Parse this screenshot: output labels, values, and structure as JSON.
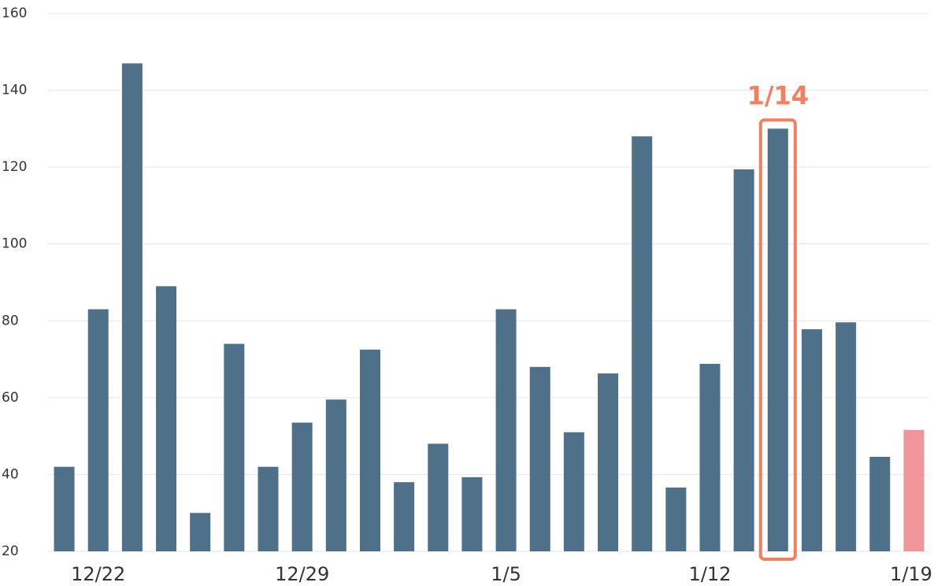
{
  "chart_data": {
    "type": "bar",
    "categories": [
      null,
      "12/22",
      null,
      null,
      null,
      null,
      null,
      "12/29",
      null,
      null,
      null,
      null,
      null,
      "1/5",
      null,
      null,
      null,
      null,
      null,
      "1/12",
      null,
      null,
      null,
      null,
      null,
      "1/19"
    ],
    "values": [
      42,
      83,
      147,
      89,
      30,
      74,
      42,
      53.5,
      59.5,
      72.5,
      38,
      48,
      39.3,
      83,
      68,
      51,
      66.3,
      128,
      36.6,
      68.8,
      119.4,
      130,
      77.8,
      79.6,
      44.6,
      51.6
    ],
    "colors": [
      "#4e7189",
      "#4e7189",
      "#4e7189",
      "#4e7189",
      "#4e7189",
      "#4e7189",
      "#4e7189",
      "#4e7189",
      "#4e7189",
      "#4e7189",
      "#4e7189",
      "#4e7189",
      "#4e7189",
      "#4e7189",
      "#4e7189",
      "#4e7189",
      "#4e7189",
      "#4e7189",
      "#4e7189",
      "#4e7189",
      "#4e7189",
      "#4e7189",
      "#4e7189",
      "#4e7189",
      "#4e7189",
      "#f0959a"
    ],
    "ylim": [
      20,
      160
    ],
    "yticks": [
      20,
      40,
      60,
      80,
      100,
      120,
      140,
      160
    ],
    "grid": true,
    "annotation": {
      "text": "1/14",
      "color": "#f08060"
    }
  }
}
